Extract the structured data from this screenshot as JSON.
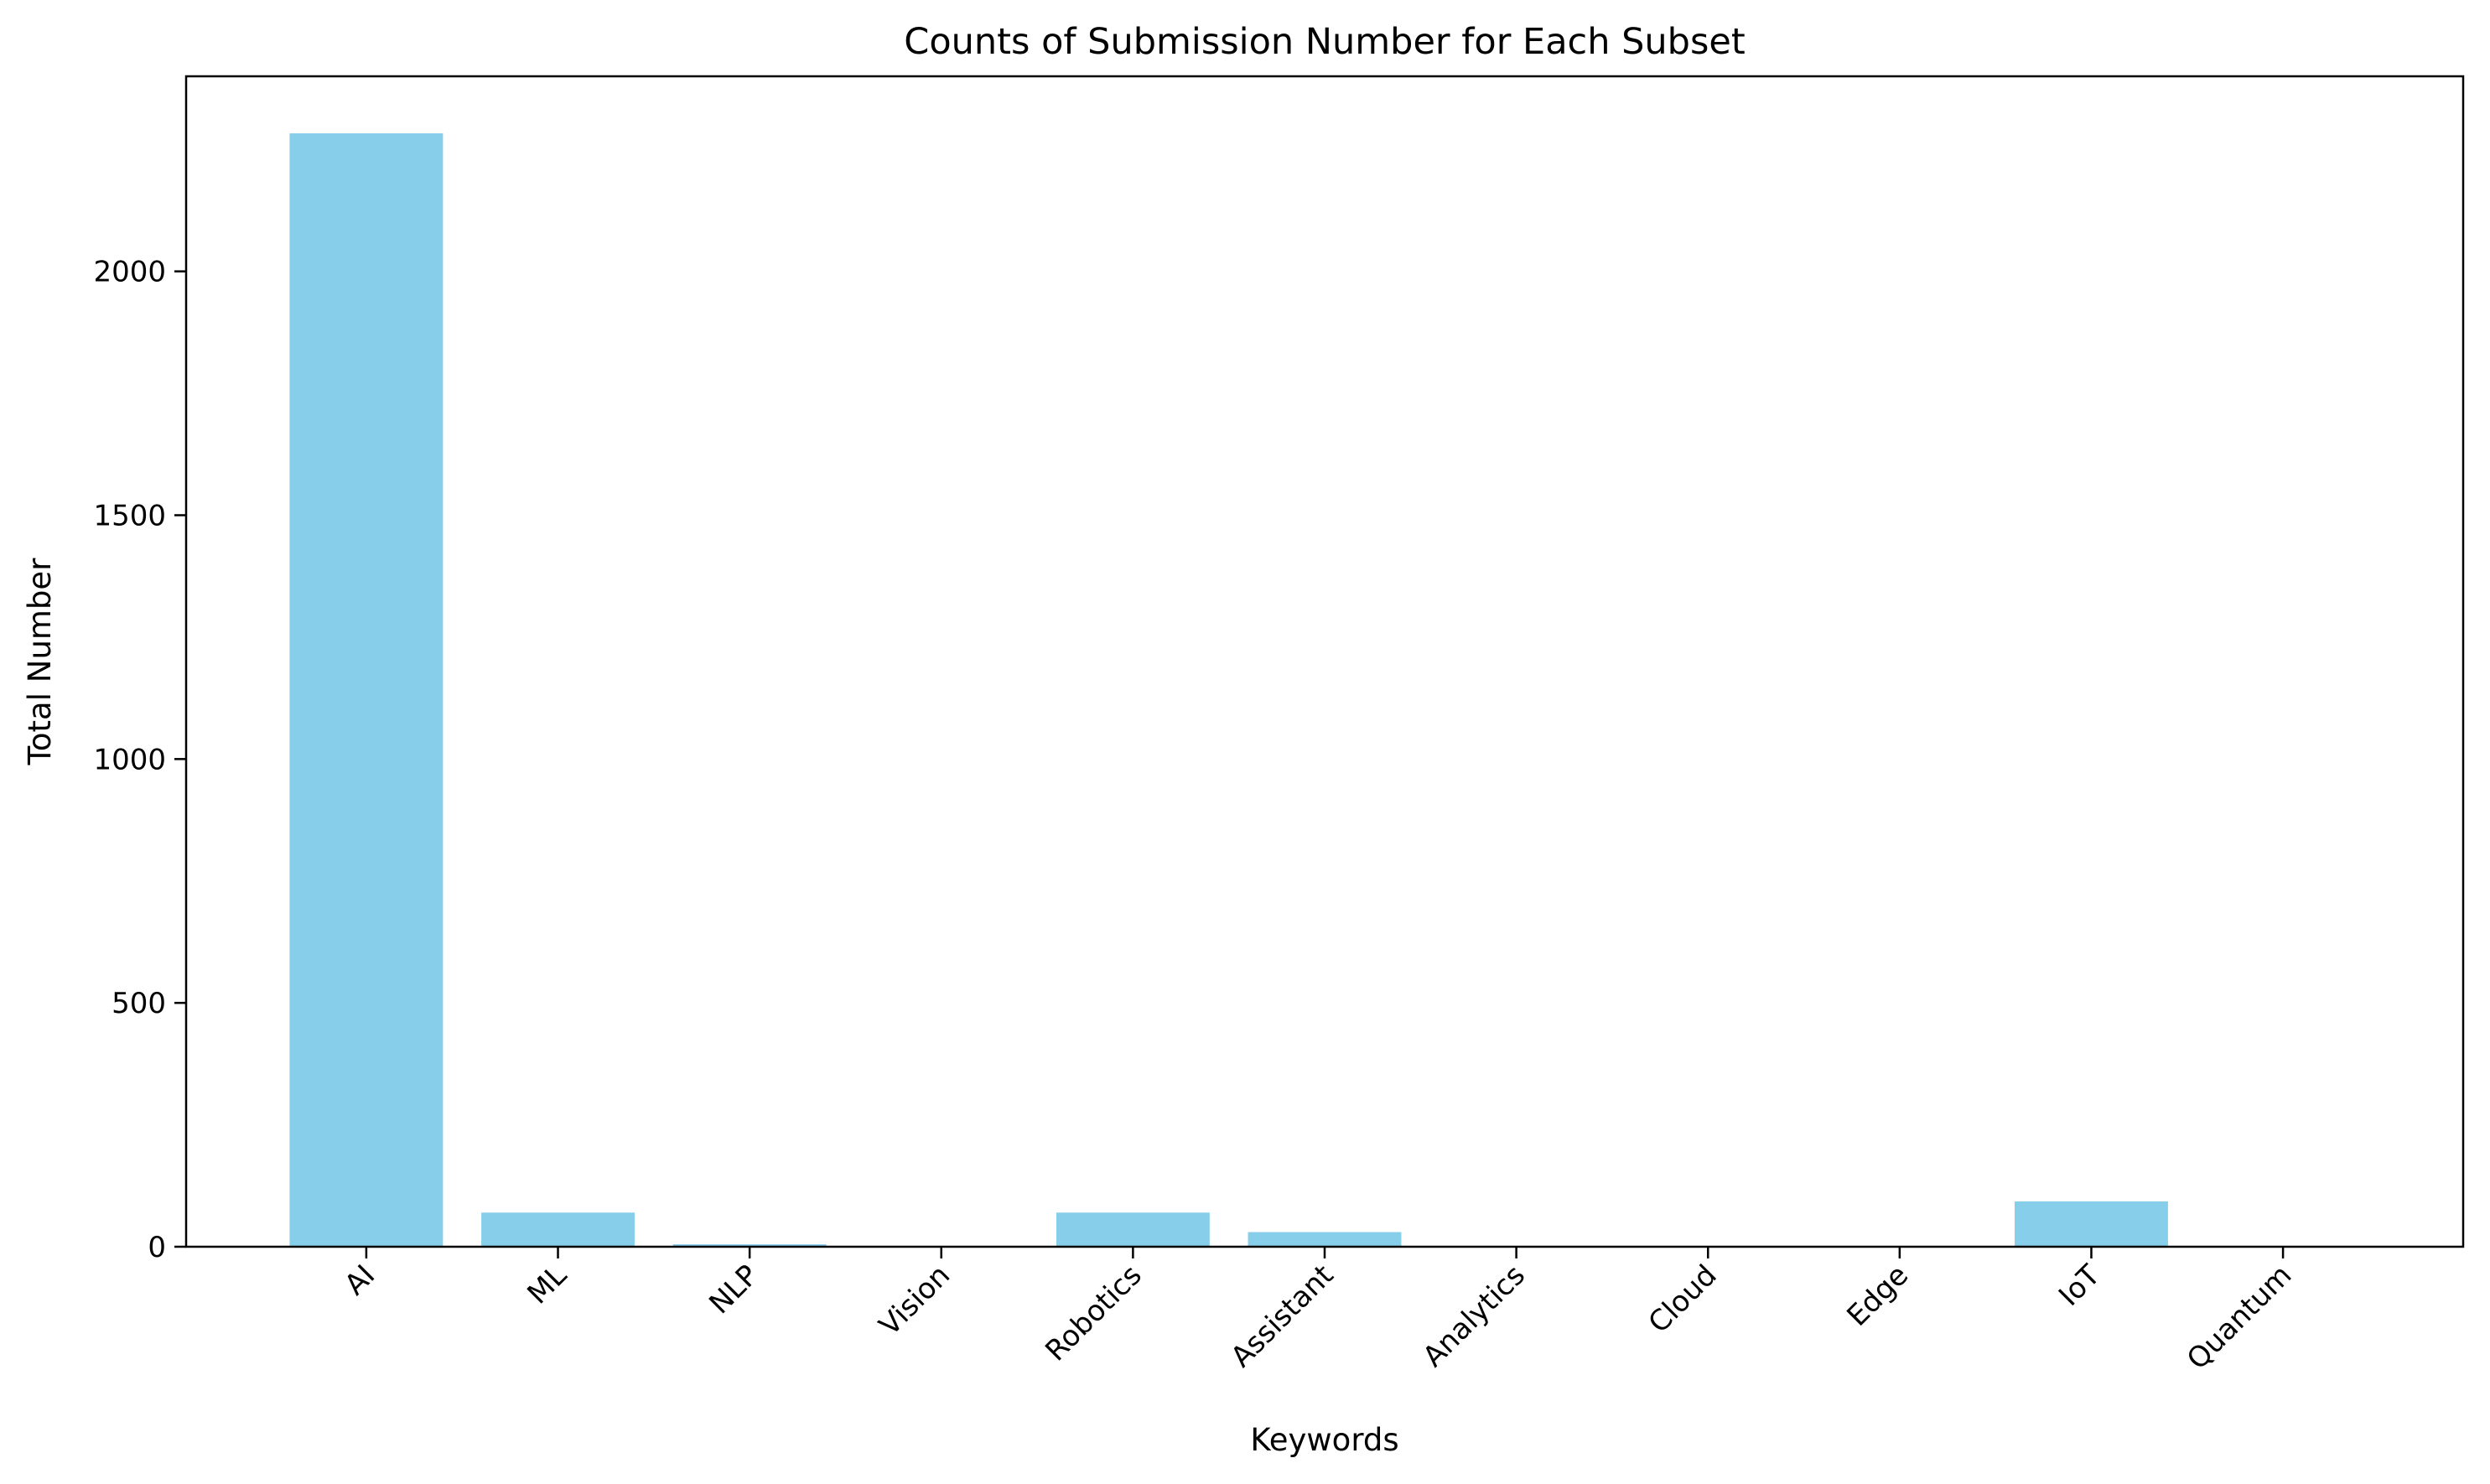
{
  "chart_data": {
    "type": "bar",
    "title": "Counts of Submission Number for Each Subset",
    "xlabel": "Keywords",
    "ylabel": "Total Number",
    "categories": [
      "AI",
      "ML",
      "NLP",
      "Vision",
      "Robotics",
      "Assistant",
      "Analytics",
      "Cloud",
      "Edge",
      "IoT",
      "Quantum"
    ],
    "values": [
      2283,
      70,
      5,
      0,
      70,
      30,
      0,
      0,
      0,
      93,
      0
    ],
    "ylim": [
      0,
      2400
    ],
    "yticks": [
      0,
      500,
      1000,
      1500,
      2000
    ],
    "bar_color": "#87CEEB",
    "grid": false,
    "legend": "none"
  }
}
